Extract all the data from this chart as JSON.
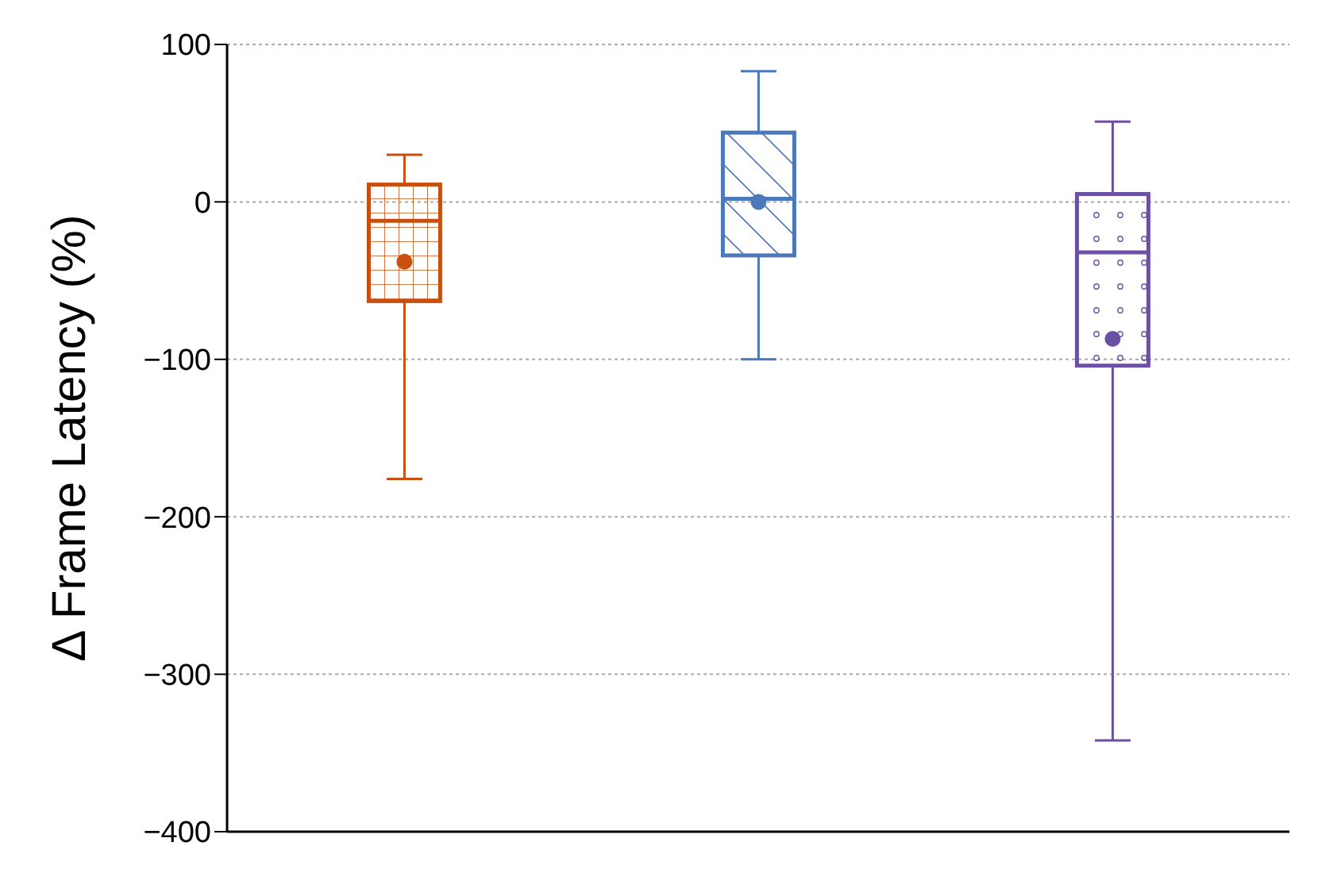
{
  "chart_data": {
    "type": "box",
    "ylabel": "Δ Frame Latency (%)",
    "categories": [
      null,
      null,
      null
    ],
    "colors": [
      "#c94f10",
      "#4a78b8",
      "#6b50a3"
    ],
    "boxes": [
      {
        "low": -176,
        "q1": -63,
        "median": -12,
        "q3": 11,
        "high": 30,
        "mean": -38
      },
      {
        "low": -100,
        "q1": -34,
        "median": 2,
        "q3": 44,
        "high": 83,
        "mean": 0
      },
      {
        "low": -342,
        "q1": -104,
        "median": -32,
        "q3": 5,
        "high": 51,
        "mean": -87
      }
    ],
    "ylim": [
      -400,
      100
    ],
    "yticks": [
      -400,
      -300,
      -200,
      -100,
      0,
      100
    ],
    "grid": "y"
  }
}
